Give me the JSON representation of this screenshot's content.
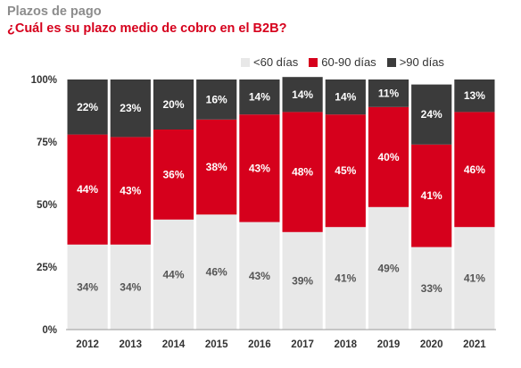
{
  "header": {
    "title": "Plazos de pago",
    "subtitle": "¿Cuál es su plazo medio de cobro en el B2B?"
  },
  "chart_data": {
    "type": "bar",
    "stacked": true,
    "percent": true,
    "categories": [
      "2012",
      "2013",
      "2014",
      "2015",
      "2016",
      "2017",
      "2018",
      "2019",
      "2020",
      "2021"
    ],
    "series": [
      {
        "name": "<60 días",
        "color": "#e8e8e8",
        "label_color": "#555555",
        "values": [
          34,
          34,
          44,
          46,
          43,
          39,
          41,
          49,
          33,
          41
        ]
      },
      {
        "name": "60-90 días",
        "color": "#d6001c",
        "label_color": "#ffffff",
        "values": [
          44,
          43,
          36,
          38,
          43,
          48,
          45,
          40,
          41,
          46
        ]
      },
      {
        "name": ">90 días",
        "color": "#3b3b3b",
        "label_color": "#ffffff",
        "values": [
          22,
          23,
          20,
          16,
          14,
          14,
          14,
          11,
          24,
          13
        ]
      }
    ],
    "y_ticks": [
      "0%",
      "25%",
      "50%",
      "75%",
      "100%"
    ],
    "ylim": [
      0,
      100
    ],
    "legend_position": "top-right"
  }
}
